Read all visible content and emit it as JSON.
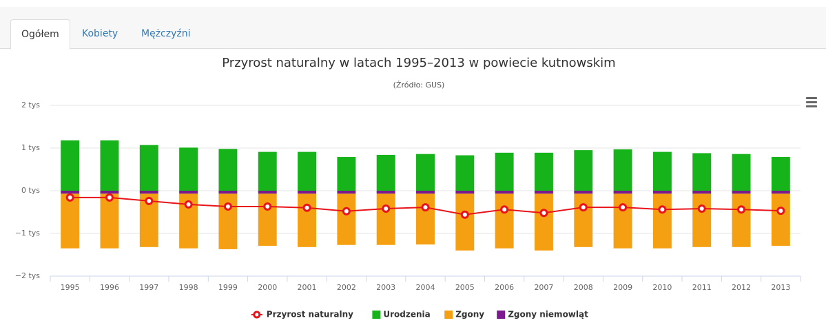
{
  "tabs": [
    "Ogółem",
    "Kobiety",
    "Mężczyźni"
  ],
  "chart_data": {
    "type": "bar",
    "title": "Przyrost naturalny w latach 1995–2013 w powiecie kutnowskim",
    "subtitle": "(Źródło: GUS)",
    "categories": [
      "1995",
      "1996",
      "1997",
      "1998",
      "1999",
      "2000",
      "2001",
      "2002",
      "2003",
      "2004",
      "2005",
      "2006",
      "2007",
      "2008",
      "2009",
      "2010",
      "2011",
      "2012",
      "2013"
    ],
    "ylim": [
      -2,
      2
    ],
    "yticks": [
      {
        "value": -2,
        "label": "−2 tys"
      },
      {
        "value": -1,
        "label": "−1 tys"
      },
      {
        "value": 0,
        "label": "0 tys"
      },
      {
        "value": 1,
        "label": "1 tys"
      },
      {
        "value": 2,
        "label": "2 tys"
      }
    ],
    "grid": true,
    "legend": "bottom",
    "series": [
      {
        "name": "Przyrost naturalny",
        "type": "line",
        "color": "#e8141a",
        "values": [
          -0.16,
          -0.16,
          -0.24,
          -0.32,
          -0.37,
          -0.37,
          -0.4,
          -0.48,
          -0.42,
          -0.39,
          -0.56,
          -0.44,
          -0.52,
          -0.39,
          -0.39,
          -0.44,
          -0.42,
          -0.44,
          -0.47
        ]
      },
      {
        "name": "Urodzenia",
        "type": "bar",
        "color": "#17b31b",
        "values": [
          1.18,
          1.18,
          1.07,
          1.01,
          0.98,
          0.91,
          0.91,
          0.79,
          0.84,
          0.86,
          0.83,
          0.89,
          0.89,
          0.95,
          0.97,
          0.91,
          0.88,
          0.86,
          0.79
        ]
      },
      {
        "name": "Zgony",
        "type": "bar",
        "color": "#f5a013",
        "values": [
          -1.28,
          -1.28,
          -1.25,
          -1.28,
          -1.3,
          -1.22,
          -1.25,
          -1.2,
          -1.2,
          -1.19,
          -1.33,
          -1.28,
          -1.33,
          -1.25,
          -1.28,
          -1.28,
          -1.25,
          -1.25,
          -1.22
        ]
      },
      {
        "name": "Zgony niemowląt",
        "type": "bar",
        "color": "#7b1a8c",
        "values": [
          -0.07,
          -0.07,
          -0.07,
          -0.07,
          -0.07,
          -0.07,
          -0.07,
          -0.07,
          -0.07,
          -0.07,
          -0.07,
          -0.07,
          -0.07,
          -0.07,
          -0.07,
          -0.07,
          -0.07,
          -0.07,
          -0.07
        ]
      }
    ]
  }
}
